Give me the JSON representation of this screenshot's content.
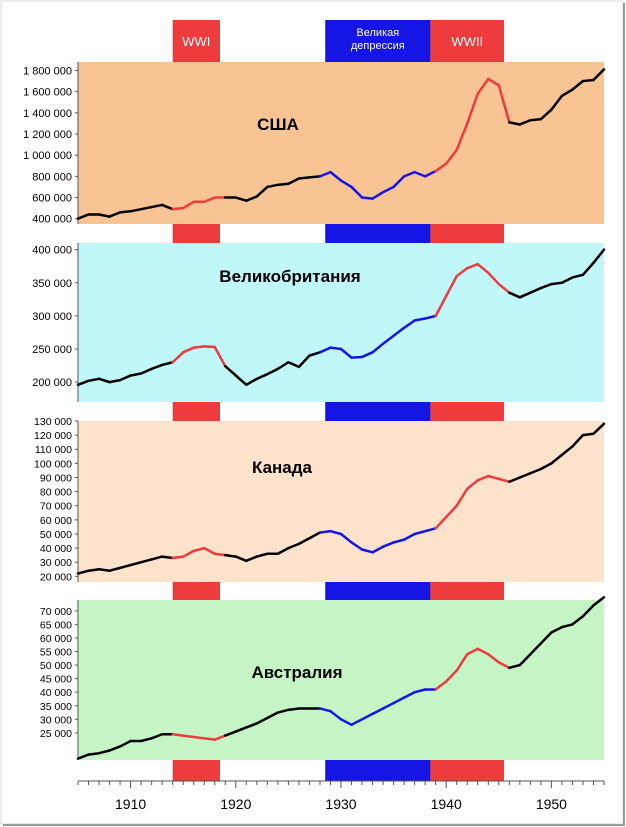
{
  "chart_data": {
    "type": "line",
    "x_axis": {
      "range": [
        1905,
        1955
      ],
      "tick_labels": [
        "1910",
        "1920",
        "1930",
        "1940",
        "1950"
      ],
      "tick_values": [
        1910,
        1920,
        1930,
        1940,
        1950
      ]
    },
    "period_bands": [
      {
        "label": "WWI",
        "start": 1914,
        "end": 1918.5,
        "color": "#ee3b3b",
        "label_color": "#ffffff"
      },
      {
        "label": "Великая\nдепрессия",
        "start": 1928.5,
        "end": 1938.5,
        "color": "#1515e6",
        "label_color": "#ffffff"
      },
      {
        "label": "WWII",
        "start": 1938.5,
        "end": 1945.5,
        "color": "#ee3b3b",
        "label_color": "#ffffff"
      }
    ],
    "segment_colors": {
      "normal": "#000000",
      "war": "#ee3b3b",
      "depression": "#1515e6"
    },
    "panels": [
      {
        "name": "США",
        "background": "#f9c494",
        "ylim": [
          350000,
          1880000
        ],
        "y_ticks": [
          400000,
          600000,
          800000,
          1000000,
          1200000,
          1400000,
          1600000,
          1800000
        ],
        "y_tick_labels": [
          "400 000",
          "600 000",
          "800 000",
          "1 000 000",
          "1 200 000",
          "1 400 000",
          "1 600 000",
          "1 800 000"
        ],
        "x": [
          1905,
          1906,
          1907,
          1908,
          1909,
          1910,
          1911,
          1912,
          1913,
          1914,
          1915,
          1916,
          1917,
          1918,
          1919,
          1920,
          1921,
          1922,
          1923,
          1924,
          1925,
          1926,
          1927,
          1928,
          1929,
          1930,
          1931,
          1932,
          1933,
          1934,
          1935,
          1936,
          1937,
          1938,
          1939,
          1940,
          1941,
          1942,
          1943,
          1944,
          1945,
          1946,
          1947,
          1948,
          1949,
          1950,
          1951,
          1952,
          1953,
          1954,
          1955
        ],
        "values": [
          400000,
          440000,
          440000,
          420000,
          460000,
          470000,
          490000,
          510000,
          530000,
          490000,
          500000,
          560000,
          560000,
          600000,
          600000,
          600000,
          570000,
          610000,
          700000,
          720000,
          730000,
          780000,
          790000,
          800000,
          840000,
          760000,
          700000,
          600000,
          590000,
          650000,
          700000,
          800000,
          840000,
          800000,
          850000,
          920000,
          1050000,
          1300000,
          1580000,
          1720000,
          1660000,
          1310000,
          1290000,
          1330000,
          1340000,
          1430000,
          1560000,
          1620000,
          1700000,
          1710000,
          1810000
        ]
      },
      {
        "name": "Великобритания",
        "background": "#c0f8fa",
        "ylim": [
          170000,
          410000
        ],
        "y_ticks": [
          200000,
          250000,
          300000,
          350000,
          400000
        ],
        "y_tick_labels": [
          "200 000",
          "250 000",
          "300 000",
          "350 000",
          "400 000"
        ],
        "x": [
          1905,
          1906,
          1907,
          1908,
          1909,
          1910,
          1911,
          1912,
          1913,
          1914,
          1915,
          1916,
          1917,
          1918,
          1919,
          1920,
          1921,
          1922,
          1923,
          1924,
          1925,
          1926,
          1927,
          1928,
          1929,
          1930,
          1931,
          1932,
          1933,
          1934,
          1935,
          1936,
          1937,
          1938,
          1939,
          1940,
          1941,
          1942,
          1943,
          1944,
          1945,
          1946,
          1947,
          1948,
          1949,
          1950,
          1951,
          1952,
          1953,
          1954,
          1955
        ],
        "values": [
          196000,
          202000,
          205000,
          200000,
          203000,
          210000,
          213000,
          220000,
          226000,
          230000,
          245000,
          252000,
          254000,
          253000,
          224000,
          210000,
          196000,
          205000,
          212000,
          220000,
          230000,
          223000,
          240000,
          245000,
          252000,
          250000,
          237000,
          238000,
          245000,
          258000,
          270000,
          282000,
          293000,
          296000,
          300000,
          330000,
          360000,
          372000,
          378000,
          365000,
          348000,
          335000,
          328000,
          335000,
          342000,
          348000,
          350000,
          358000,
          362000,
          380000,
          400000
        ]
      },
      {
        "name": "Канада",
        "background": "#fde2cc",
        "ylim": [
          16000,
          130000
        ],
        "y_ticks": [
          20000,
          30000,
          40000,
          50000,
          60000,
          70000,
          80000,
          90000,
          100000,
          110000,
          120000,
          130000
        ],
        "y_tick_labels": [
          "20 000",
          "30 000",
          "40 000",
          "50 000",
          "60 000",
          "70 000",
          "80 000",
          "90 000",
          "100 000",
          "110 000",
          "120 000",
          "130 000"
        ],
        "x": [
          1905,
          1906,
          1907,
          1908,
          1909,
          1910,
          1911,
          1912,
          1913,
          1914,
          1915,
          1916,
          1917,
          1918,
          1919,
          1920,
          1921,
          1922,
          1923,
          1924,
          1925,
          1926,
          1927,
          1928,
          1929,
          1930,
          1931,
          1932,
          1933,
          1934,
          1935,
          1936,
          1937,
          1938,
          1939,
          1940,
          1941,
          1942,
          1943,
          1944,
          1945,
          1946,
          1947,
          1948,
          1949,
          1950,
          1951,
          1952,
          1953,
          1954,
          1955
        ],
        "values": [
          22000,
          24000,
          25000,
          24000,
          26000,
          28000,
          30000,
          32000,
          34000,
          33000,
          34000,
          38000,
          40000,
          36000,
          35000,
          34000,
          31000,
          34000,
          36000,
          36000,
          40000,
          43000,
          47000,
          51000,
          52000,
          50000,
          44000,
          39000,
          37000,
          41000,
          44000,
          46000,
          50000,
          52000,
          54000,
          62000,
          70000,
          82000,
          88000,
          91000,
          89000,
          87000,
          90000,
          93000,
          96000,
          100000,
          106000,
          112000,
          120000,
          121000,
          128000
        ]
      },
      {
        "name": "Австралия",
        "background": "#c5f5c5",
        "ylim": [
          15000,
          74000
        ],
        "y_ticks": [
          25000,
          30000,
          35000,
          40000,
          45000,
          50000,
          55000,
          60000,
          65000,
          70000
        ],
        "y_tick_labels": [
          "25 000",
          "30 000",
          "35 000",
          "40 000",
          "45 000",
          "50 000",
          "55 000",
          "60 000",
          "65 000",
          "70 000"
        ],
        "x": [
          1905,
          1906,
          1907,
          1908,
          1909,
          1910,
          1911,
          1912,
          1913,
          1914,
          1915,
          1916,
          1917,
          1918,
          1919,
          1920,
          1921,
          1922,
          1923,
          1924,
          1925,
          1926,
          1927,
          1928,
          1929,
          1930,
          1931,
          1932,
          1933,
          1934,
          1935,
          1936,
          1937,
          1938,
          1939,
          1940,
          1941,
          1942,
          1943,
          1944,
          1945,
          1946,
          1947,
          1948,
          1949,
          1950,
          1951,
          1952,
          1953,
          1954,
          1955
        ],
        "values": [
          15500,
          17000,
          17500,
          18500,
          20000,
          22000,
          22000,
          23000,
          24500,
          24500,
          24000,
          23500,
          23000,
          22500,
          24000,
          25500,
          27000,
          28500,
          30500,
          32500,
          33500,
          34000,
          34000,
          34000,
          33000,
          30000,
          28000,
          30000,
          32000,
          34000,
          36000,
          38000,
          40000,
          41000,
          41000,
          44000,
          48000,
          54000,
          56000,
          54000,
          51000,
          49000,
          50000,
          54000,
          58000,
          62000,
          64000,
          65000,
          68000,
          72000,
          75000
        ]
      }
    ]
  }
}
